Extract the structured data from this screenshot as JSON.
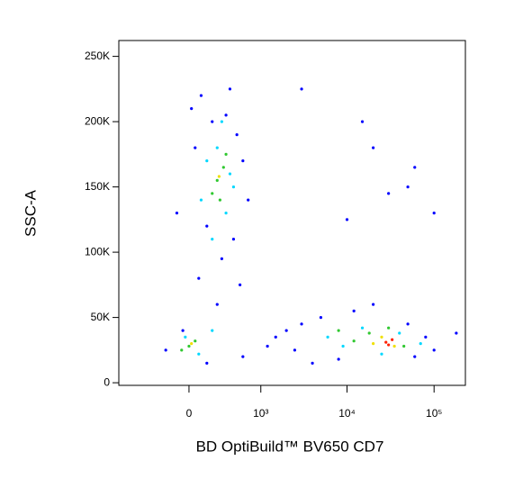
{
  "chart_data": {
    "type": "scatter",
    "x_label": "BD OptiBuild™ BV650 CD7",
    "y_label": "SSC-A",
    "xscale": "biexponential",
    "xlim": [
      -955,
      229000
    ],
    "ylim": [
      -2000,
      262144
    ],
    "xticks": [
      0,
      {
        "value": 1000,
        "label": "10³"
      },
      {
        "value": 10000,
        "label": "10⁴"
      },
      {
        "value": 100000,
        "label": "10⁵"
      }
    ],
    "yticks": [
      0,
      {
        "value": 50000,
        "label": "50K"
      },
      {
        "value": 100000,
        "label": "100K"
      },
      {
        "value": 150000,
        "label": "150K"
      },
      {
        "value": 200000,
        "label": "200K"
      },
      {
        "value": 250000,
        "label": "250K"
      }
    ],
    "series": [
      {
        "color": "#0000ff",
        "x": [
          100,
          400,
          200,
          500,
          50,
          600,
          150,
          450,
          300,
          80,
          550,
          250,
          20,
          350,
          700,
          -100,
          -50,
          -200,
          150,
          600,
          1500,
          2500,
          3000,
          5000,
          8000,
          12000,
          20000,
          50000,
          80000,
          60000,
          4000,
          2000,
          1200,
          100000,
          180000,
          10000,
          30000,
          50000,
          20000,
          60000,
          15000,
          100000,
          3000
        ],
        "values": [
          220000,
          225000,
          200000,
          190000,
          180000,
          170000,
          120000,
          110000,
          95000,
          80000,
          75000,
          60000,
          210000,
          205000,
          140000,
          130000,
          40000,
          25000,
          15000,
          20000,
          35000,
          25000,
          45000,
          50000,
          18000,
          55000,
          60000,
          45000,
          35000,
          20000,
          15000,
          40000,
          28000,
          25000,
          38000,
          125000,
          145000,
          150000,
          180000,
          165000,
          200000,
          130000,
          225000
        ]
      },
      {
        "color": "#00d8ff",
        "x": [
          250,
          400,
          150,
          350,
          200,
          300,
          450,
          100,
          -30,
          80,
          200,
          6000,
          9000,
          15000,
          40000,
          25000,
          70000
        ],
        "values": [
          180000,
          160000,
          170000,
          130000,
          110000,
          200000,
          150000,
          140000,
          35000,
          22000,
          40000,
          35000,
          28000,
          42000,
          38000,
          22000,
          30000
        ]
      },
      {
        "color": "#30c830",
        "x": [
          250,
          320,
          200,
          280,
          350,
          0,
          50,
          -60,
          12000,
          18000,
          30000,
          45000,
          8000
        ],
        "values": [
          155000,
          165000,
          145000,
          140000,
          175000,
          28000,
          32000,
          25000,
          32000,
          38000,
          42000,
          28000,
          40000
        ]
      },
      {
        "color": "#f0e000",
        "x": [
          270,
          20,
          25000,
          35000,
          20000
        ],
        "values": [
          158000,
          30000,
          35000,
          28000,
          30000
        ]
      },
      {
        "color": "#ff2000",
        "x": [
          28000,
          33000,
          30000
        ],
        "values": [
          31000,
          33000,
          29000
        ]
      }
    ]
  }
}
